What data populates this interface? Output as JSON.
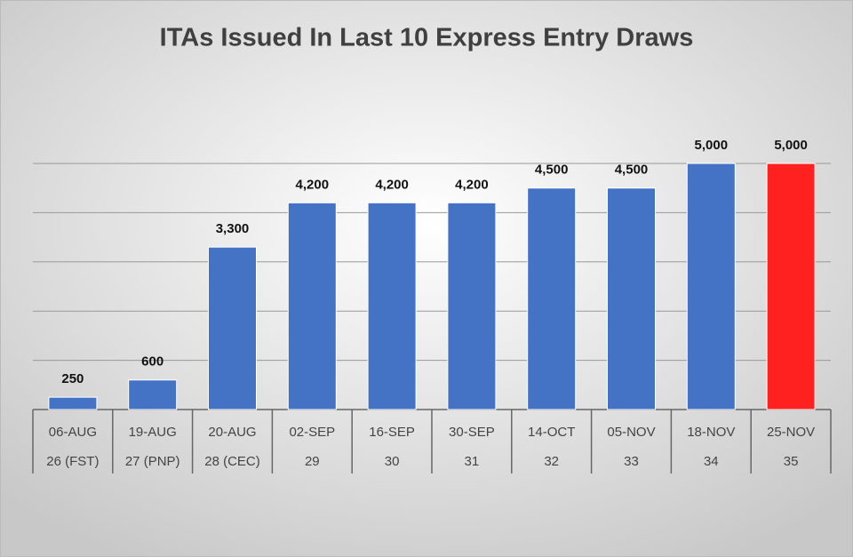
{
  "chart_data": {
    "type": "bar",
    "title": "ITAs Issued In Last 10 Express Entry Draws",
    "categories": [
      "06-AUG",
      "19-AUG",
      "20-AUG",
      "02-SEP",
      "16-SEP",
      "30-SEP",
      "14-OCT",
      "05-NOV",
      "18-NOV",
      "25-NOV"
    ],
    "draw_numbers": [
      "26 (FST)",
      "27 (PNP)",
      "28 (CEC)",
      "29",
      "30",
      "31",
      "32",
      "33",
      "34",
      "35"
    ],
    "values": [
      250,
      600,
      3300,
      4200,
      4200,
      4200,
      4500,
      4500,
      5000,
      5000
    ],
    "value_labels": [
      "250",
      "600",
      "3,300",
      "4,200",
      "4,200",
      "4,200",
      "4,500",
      "4,500",
      "5,000",
      "5,000"
    ],
    "colors": [
      "#4472c4",
      "#4472c4",
      "#4472c4",
      "#4472c4",
      "#4472c4",
      "#4472c4",
      "#4472c4",
      "#4472c4",
      "#4472c4",
      "#ff2020"
    ],
    "ylim": [
      0,
      5000
    ],
    "yticks": [
      0,
      1000,
      2000,
      3000,
      4000,
      5000
    ],
    "grid": true
  }
}
